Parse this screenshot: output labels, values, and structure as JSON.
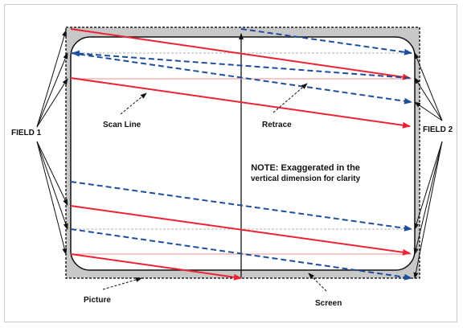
{
  "labels": {
    "field1": "FIELD 1",
    "field2": "FIELD 2",
    "scan_line": "Scan Line",
    "retrace": "Retrace",
    "picture": "Picture",
    "screen": "Screen"
  },
  "note": {
    "line1": "NOTE: Exaggerated in the",
    "line2": "vertical dimension for clarity"
  },
  "colors": {
    "scan_line": "#ee2233",
    "retrace": "#1f4e9a",
    "faint_line": "#f2a4a4",
    "gray_line": "#b0b0b0",
    "screen_fill": "#c8c8c8",
    "picture_fill": "#ffffff",
    "outline": "#222222"
  }
}
